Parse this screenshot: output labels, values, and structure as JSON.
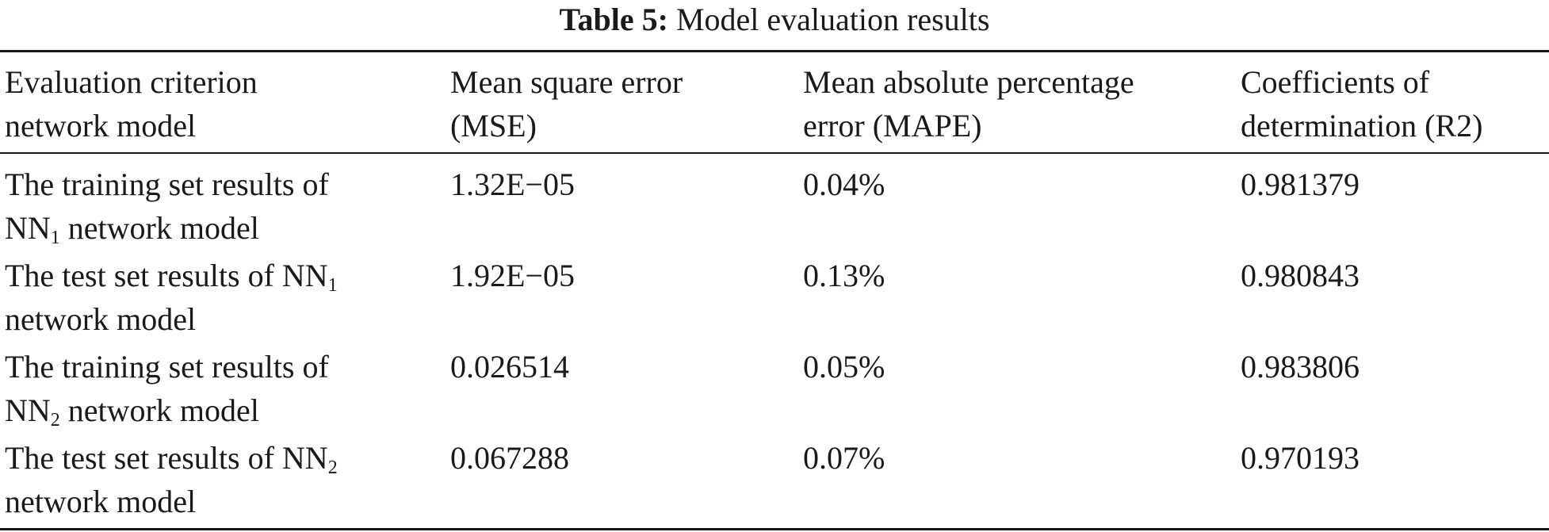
{
  "caption": {
    "label": "Table 5:",
    "title": "Model evaluation results"
  },
  "header": [
    [
      "Evaluation criterion",
      "network model"
    ],
    [
      "Mean square error",
      "(MSE)"
    ],
    [
      "Mean absolute percentage",
      "error (MAPE)"
    ],
    [
      "Coefficients of",
      "determination (R2)"
    ]
  ],
  "rows": [
    {
      "model": {
        "line1": "The training set results of",
        "line2_pre": "NN",
        "sub": "1",
        "line2_post": " network model"
      },
      "mse": "1.32E−05",
      "mape": "0.04%",
      "r2": "0.981379"
    },
    {
      "model": {
        "line1_pre": "The test set results of NN",
        "sub": "1",
        "line2": "network model"
      },
      "mse": "1.92E−05",
      "mape": "0.13%",
      "r2": "0.980843"
    },
    {
      "model": {
        "line1": "The training set results of",
        "line2_pre": "NN",
        "sub": "2",
        "line2_post": " network model"
      },
      "mse": "0.026514",
      "mape": "0.05%",
      "r2": "0.983806"
    },
    {
      "model": {
        "line1_pre": "The test set results of NN",
        "sub": "2",
        "line2": "network model"
      },
      "mse": "0.067288",
      "mape": "0.07%",
      "r2": "0.970193"
    }
  ]
}
